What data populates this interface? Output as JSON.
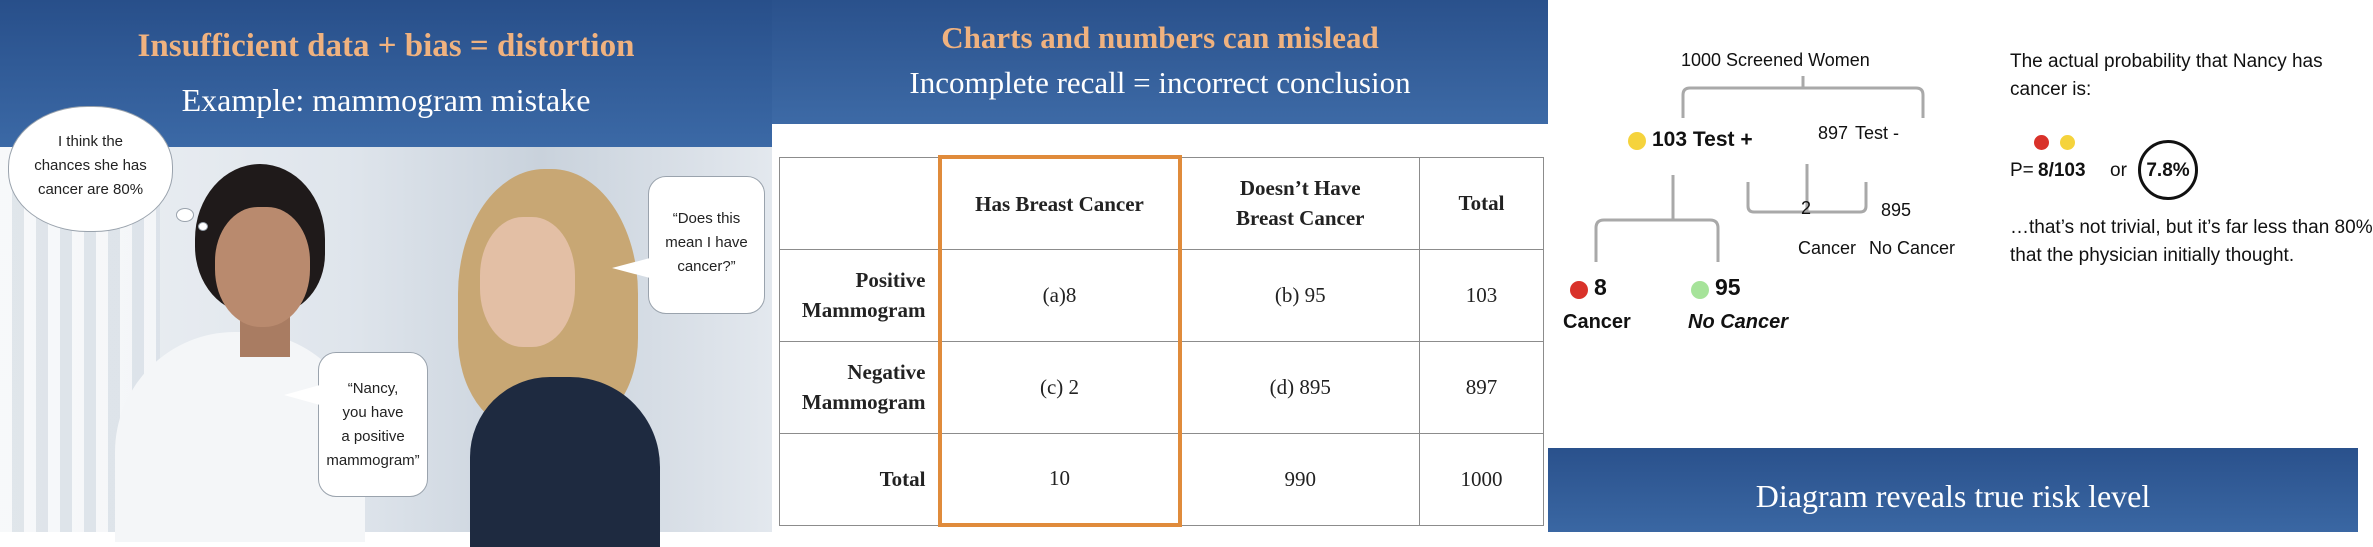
{
  "panel1": {
    "title": "Insufficient data + bias = distortion",
    "subtitle": "Example: mammogram mistake",
    "thought_bubble": [
      "I think the",
      "chances she has",
      "cancer are 80%"
    ],
    "patient_bubble": [
      "“Does this",
      "mean I have",
      "cancer?”"
    ],
    "doctor_bubble": [
      "“Nancy,",
      "you have",
      "a positive",
      "mammogram”"
    ]
  },
  "panel2": {
    "title": "Charts and numbers can mislead",
    "subtitle": "Incomplete recall = incorrect conclusion",
    "table": {
      "col_headers": [
        "Has Breast Cancer",
        "Doesn’t Have",
        "Breast Cancer",
        "Total"
      ],
      "rows": [
        {
          "label1": "Positive",
          "label2": "Mammogram",
          "a": "(a)8",
          "b": "(b) 95",
          "total": "103"
        },
        {
          "label1": "Negative",
          "label2": "Mammogram",
          "a": "(c) 2",
          "b": "(d) 895",
          "total": "897"
        },
        {
          "label1": "Total",
          "label2": "",
          "a": "10",
          "b": "990",
          "total": "1000"
        }
      ]
    }
  },
  "panel3": {
    "root": "1000 Screened Women",
    "pos_branch": "103 Test +",
    "neg_count": "897",
    "neg_label": "Test -",
    "neg_cancer_count": "2",
    "neg_cancer_label": "Cancer",
    "neg_nocancer_count": "895",
    "neg_nocancer_label": "No Cancer",
    "pos_cancer_count": "8",
    "pos_cancer_label": "Cancer",
    "pos_nocancer_count": "95",
    "pos_nocancer_label": "No Cancer",
    "prob_heading": [
      "The actual probability that Nancy has",
      "cancer is:"
    ],
    "prob_prefix": "P=",
    "prob_fraction": "8/103",
    "prob_or": "or",
    "prob_percent": "7.8%",
    "conclusion": [
      "…that’s not trivial, but it’s far less than 80%",
      "that the physician initially thought."
    ],
    "footer": "Diagram reveals true risk level",
    "colors": {
      "yellow": "#f5d33c",
      "red": "#d9322a",
      "green": "#a6e39a",
      "branch": "#a9a9a9"
    }
  }
}
